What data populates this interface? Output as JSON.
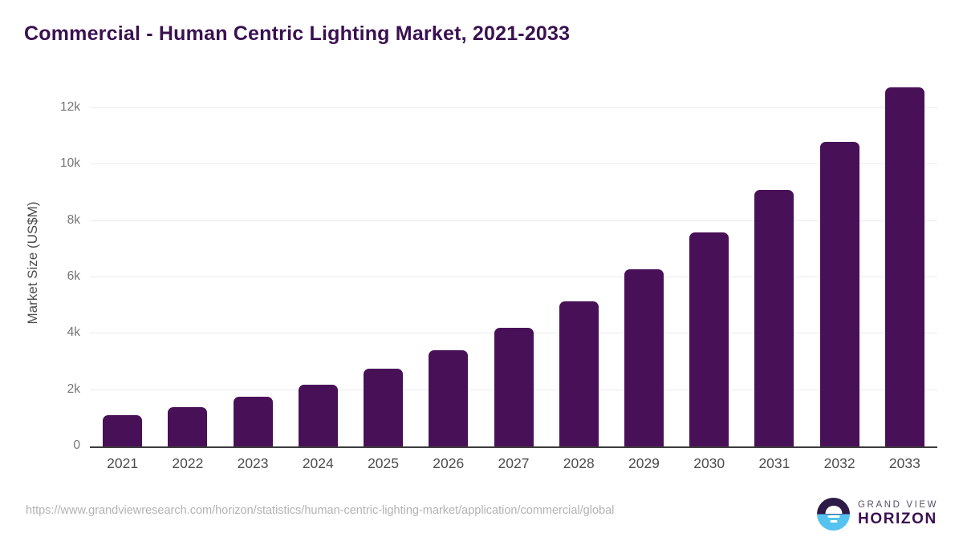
{
  "title": "Commercial - Human Centric Lighting Market, 2021-2033",
  "chart_data": {
    "type": "bar",
    "title": "Commercial - Human Centric Lighting Market, 2021-2033",
    "categories": [
      "2021",
      "2022",
      "2023",
      "2024",
      "2025",
      "2026",
      "2027",
      "2028",
      "2029",
      "2030",
      "2031",
      "2032",
      "2033"
    ],
    "values": [
      1100,
      1400,
      1750,
      2200,
      2750,
      3400,
      4200,
      5150,
      6300,
      7600,
      9100,
      10800,
      12750
    ],
    "xlabel": "",
    "ylabel": "Market Size (US$M)",
    "ylim": [
      0,
      13000
    ],
    "yticks": [
      {
        "value": 0,
        "label": "0"
      },
      {
        "value": 2000,
        "label": "2k"
      },
      {
        "value": 4000,
        "label": "4k"
      },
      {
        "value": 6000,
        "label": "6k"
      },
      {
        "value": 8000,
        "label": "8k"
      },
      {
        "value": 10000,
        "label": "10k"
      },
      {
        "value": 12000,
        "label": "12k"
      }
    ],
    "grid": "horizontal",
    "legend": "none",
    "bar_color": "#481057"
  },
  "colors": {
    "bar": "#481057",
    "title_text": "#3A1150",
    "axis_label": "#4D4D4D",
    "tick_label": "#757575",
    "gridline": "#ECECEC",
    "axis_line": "#3C3C3C",
    "footer_text": "#B3B3B3",
    "logo_blue": "#55C3EF",
    "logo_purple": "#2E1A47"
  },
  "footer": {
    "source_url": "https://www.grandviewresearch.com/horizon/statistics/human-centric-lighting-market/application/commercial/global",
    "logo": {
      "top": "GRAND VIEW",
      "bottom": "HORIZON"
    }
  }
}
